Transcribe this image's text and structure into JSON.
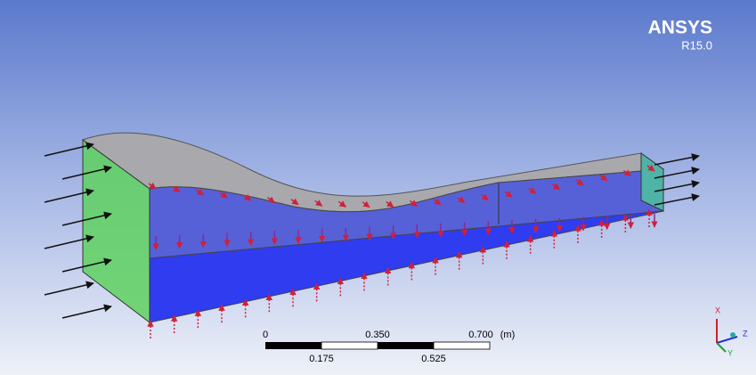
{
  "logo": {
    "name": "ANSYS",
    "version": "R15.0"
  },
  "scale_bar": {
    "top_labels": [
      "0",
      "0.350",
      "0.700"
    ],
    "unit": "(m)",
    "bottom_labels": [
      "0.175",
      "0.525"
    ]
  },
  "triad": {
    "labels": [
      "X",
      "Z",
      "Y"
    ]
  }
}
